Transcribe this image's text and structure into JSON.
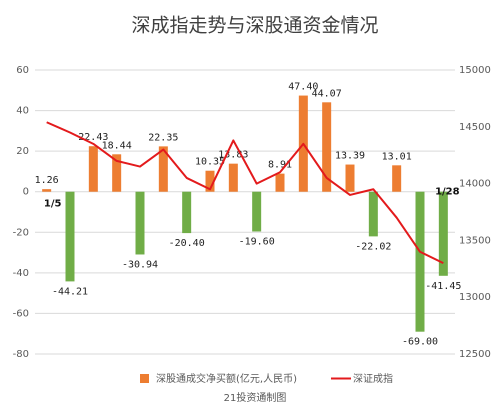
{
  "chart_data": {
    "type": "bar",
    "title": "深成指走势与深股通资金情况",
    "categories": [
      null,
      null,
      null,
      null,
      null,
      null,
      null,
      null,
      null,
      null,
      null,
      null,
      null,
      null,
      null,
      null,
      null,
      null
    ],
    "series": [
      {
        "name": "深股通成交净买额(亿元,人民币)",
        "type": "bar",
        "color": "#ed7d31",
        "negative_color": "#70ad47",
        "values": [
          1.26,
          -44.21,
          22.43,
          18.44,
          -30.94,
          22.35,
          -20.4,
          10.35,
          13.83,
          -19.6,
          8.91,
          47.4,
          44.07,
          13.39,
          -22.02,
          13.01,
          -69.0,
          -41.45
        ],
        "value_labels": [
          "1.26",
          "-44.21",
          "22.43",
          "18.44",
          "-30.94",
          "22.35",
          "-20.40",
          "10.35",
          "13.83",
          "-19.60",
          "8.91",
          "47.40",
          "44.07",
          "13.39",
          "-22.02",
          "13.01",
          "-69.00",
          "-41.45"
        ]
      },
      {
        "name": "深证成指",
        "type": "line",
        "axis": "y2",
        "color": "#e31a1c",
        "values": [
          14540,
          14450,
          14350,
          14200,
          14150,
          14300,
          14050,
          13950,
          14380,
          14000,
          14100,
          14350,
          14050,
          13900,
          13950,
          13700,
          13400,
          13300
        ]
      }
    ],
    "ylim": [
      -80,
      60
    ],
    "yticks": [
      -80,
      -60,
      -40,
      -20,
      0,
      20,
      40,
      60
    ],
    "y2lim": [
      12500,
      15000
    ],
    "y2ticks": [
      12500,
      13000,
      13500,
      14000,
      14500,
      15000
    ],
    "grid": true,
    "legend": "bottom",
    "annotations": [
      {
        "text": "1/5",
        "index": 0
      },
      {
        "text": "1/28",
        "index": 17
      }
    ],
    "footer": "21投资通制图"
  }
}
